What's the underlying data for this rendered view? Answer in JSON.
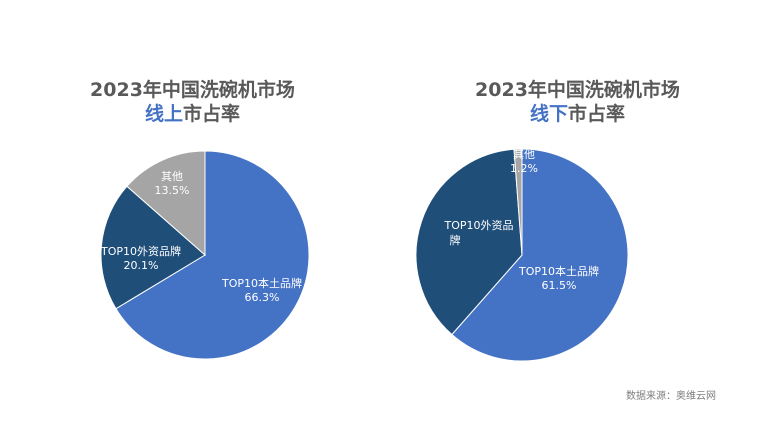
{
  "source_note": "数据来源：奥维云网",
  "chart_data": [
    {
      "type": "pie",
      "title": "2023年中国洗碗机市场",
      "subtitle_highlight": "线上",
      "subtitle_rest": "市占率",
      "slices": [
        {
          "name": "TOP10本土品牌",
          "value": 66.3,
          "value_label": "66.3%",
          "color": "#4472c4"
        },
        {
          "name": "TOP10外资品牌",
          "value": 20.1,
          "value_label": "20.1%",
          "color": "#1f4e79"
        },
        {
          "name": "其他",
          "value": 13.5,
          "value_label": "13.5%",
          "color": "#a5a5a5"
        }
      ]
    },
    {
      "type": "pie",
      "title": "2023年中国洗碗机市场",
      "subtitle_highlight": "线下",
      "subtitle_rest": "市占率",
      "slices": [
        {
          "name": "TOP10本土品牌",
          "value": 61.5,
          "value_label": "61.5%",
          "color": "#4472c4"
        },
        {
          "name": "TOP10外资品牌",
          "value": 37.3,
          "value_label": "",
          "color": "#1f4e79"
        },
        {
          "name": "其他",
          "value": 1.2,
          "value_label": "1.2%",
          "color": "#a5a5a5"
        }
      ]
    }
  ]
}
